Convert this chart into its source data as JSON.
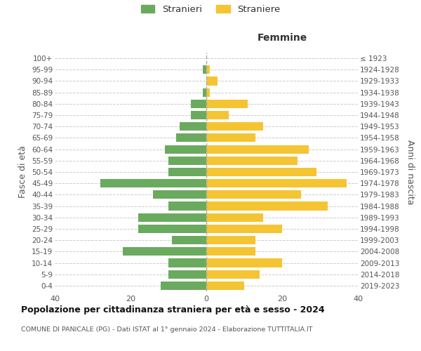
{
  "age_groups": [
    "0-4",
    "5-9",
    "10-14",
    "15-19",
    "20-24",
    "25-29",
    "30-34",
    "35-39",
    "40-44",
    "45-49",
    "50-54",
    "55-59",
    "60-64",
    "65-69",
    "70-74",
    "75-79",
    "80-84",
    "85-89",
    "90-94",
    "95-99",
    "100+"
  ],
  "birth_years": [
    "2019-2023",
    "2014-2018",
    "2009-2013",
    "2004-2008",
    "1999-2003",
    "1994-1998",
    "1989-1993",
    "1984-1988",
    "1979-1983",
    "1974-1978",
    "1969-1973",
    "1964-1968",
    "1959-1963",
    "1954-1958",
    "1949-1953",
    "1944-1948",
    "1939-1943",
    "1934-1938",
    "1929-1933",
    "1924-1928",
    "≤ 1923"
  ],
  "males": [
    12,
    10,
    10,
    22,
    9,
    18,
    18,
    10,
    14,
    28,
    10,
    10,
    11,
    8,
    7,
    4,
    4,
    1,
    0,
    1,
    0
  ],
  "females": [
    10,
    14,
    20,
    13,
    13,
    20,
    15,
    32,
    25,
    37,
    29,
    24,
    27,
    13,
    15,
    6,
    11,
    1,
    3,
    1,
    0
  ],
  "male_color": "#6aaa5e",
  "female_color": "#f5c432",
  "grid_color": "#cccccc",
  "title": "Popolazione per cittadinanza straniera per età e sesso - 2024",
  "subtitle": "COMUNE DI PANICALE (PG) - Dati ISTAT al 1° gennaio 2024 - Elaborazione TUTTITALIA.IT",
  "legend_male": "Stranieri",
  "legend_female": "Straniere",
  "xlabel_right": "Femmine",
  "ylabel_left": "Fasce di età",
  "ylabel_right": "Anni di nascita",
  "xlim": 40
}
